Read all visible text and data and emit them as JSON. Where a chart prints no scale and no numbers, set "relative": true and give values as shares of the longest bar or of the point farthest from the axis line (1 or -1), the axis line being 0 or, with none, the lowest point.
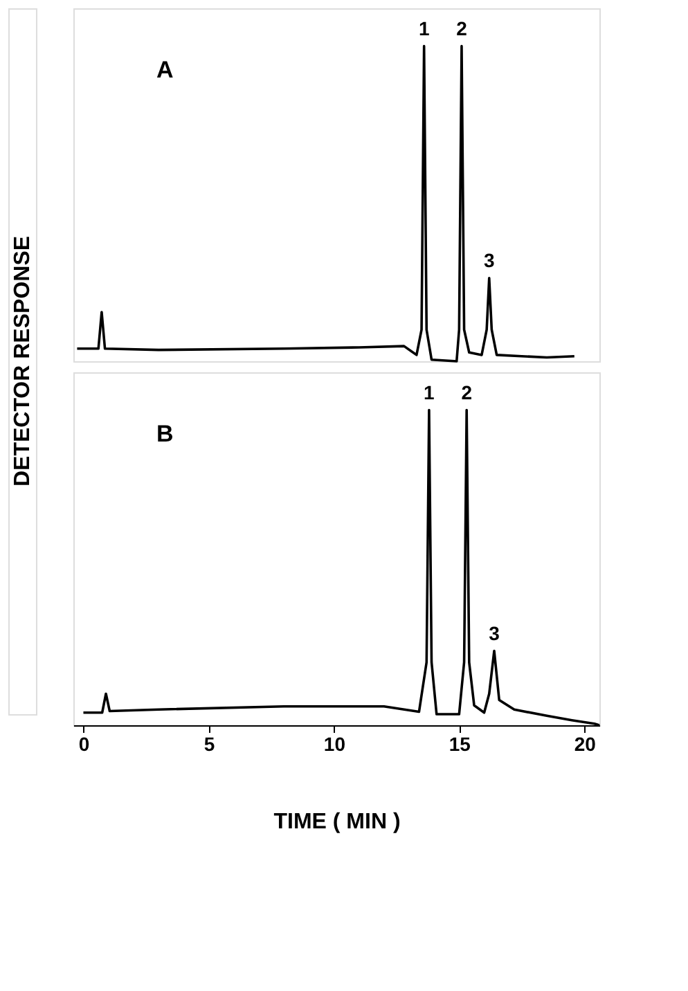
{
  "chart_data": [
    {
      "type": "line",
      "title": "A",
      "ylabel": "DETECTOR RESPONSE",
      "relative": true,
      "tick_labels": false,
      "grid": false,
      "legend": false,
      "marker": "none",
      "line_style": "solid",
      "xlim": [
        -0.4,
        20.6
      ],
      "series": [
        {
          "color": "#000000",
          "x": [
            -0.25,
            0.6,
            0.73,
            0.86,
            3,
            8,
            11,
            12.8,
            13.3,
            13.5,
            13.6,
            13.7,
            13.9,
            14.9,
            15.0,
            15.1,
            15.2,
            15.4,
            15.9,
            16.1,
            16.2,
            16.3,
            16.5,
            17.5,
            18.5,
            19.6
          ],
          "values": [
            0.04,
            0.04,
            0.156,
            0.04,
            0.036,
            0.04,
            0.044,
            0.048,
            0.02,
            0.1,
            1,
            0.1,
            0.005,
            0,
            0.1,
            1,
            0.1,
            0.028,
            0.02,
            0.1,
            0.264,
            0.1,
            0.02,
            0.016,
            0.012,
            0.016
          ]
        }
      ],
      "annotations": [
        {
          "text": "1",
          "x": 13.6,
          "y": 1
        },
        {
          "text": "2",
          "x": 15.1,
          "y": 1
        },
        {
          "text": "3",
          "x": 16.2,
          "y": 0.264
        }
      ]
    },
    {
      "type": "line",
      "title": "B",
      "xlabel": "TIME  ( MIN )",
      "relative": true,
      "tick_labels": "x",
      "grid": false,
      "legend": false,
      "marker": "none",
      "line_style": "solid",
      "xlim": [
        -0.4,
        20.6
      ],
      "xticks": [
        0,
        5,
        10,
        15,
        20
      ],
      "series": [
        {
          "color": "#000000",
          "x": [
            0,
            0.75,
            0.9,
            1.05,
            3,
            8,
            12,
            13.4,
            13.7,
            13.8,
            13.9,
            14.1,
            15.0,
            15.2,
            15.3,
            15.4,
            15.6,
            16.0,
            16.2,
            16.4,
            16.6,
            17.2,
            18.5,
            19.5,
            20.4,
            20.6
          ],
          "values": [
            0.04,
            0.04,
            0.1,
            0.045,
            0.05,
            0.06,
            0.06,
            0.043,
            0.2,
            1,
            0.2,
            0.035,
            0.035,
            0.2,
            1,
            0.2,
            0.063,
            0.04,
            0.1,
            0.236,
            0.08,
            0.05,
            0.03,
            0.016,
            0.005,
            0
          ]
        }
      ],
      "annotations": [
        {
          "text": "1",
          "x": 13.8,
          "y": 1
        },
        {
          "text": "2",
          "x": 15.3,
          "y": 1
        },
        {
          "text": "3",
          "x": 16.4,
          "y": 0.236
        }
      ]
    }
  ]
}
